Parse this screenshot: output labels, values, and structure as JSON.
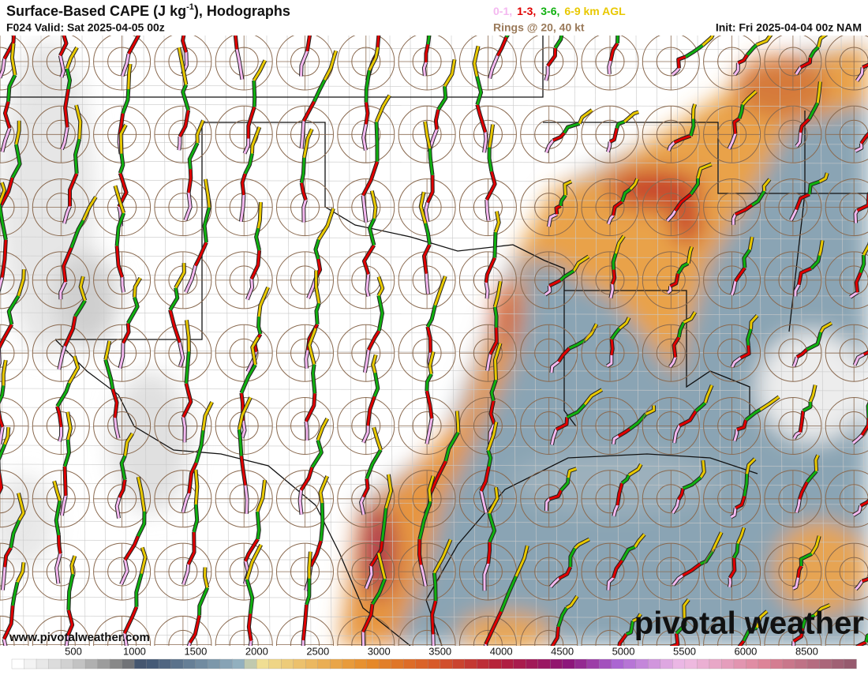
{
  "header": {
    "title": "Surface-Based CAPE (J kg",
    "title_sup": "-1",
    "title_end": "), Hodographs",
    "valid": "F024 Valid: Sat 2025-04-05 00z",
    "layers": [
      {
        "label": "0-1,",
        "color": "#f4b8f0"
      },
      {
        "label": "1-3,",
        "color": "#e00000"
      },
      {
        "label": "3-6,",
        "color": "#10b010"
      },
      {
        "label": "6-9 km AGL",
        "color": "#e8c800"
      }
    ],
    "rings": "Rings @ 20, 40 kt",
    "init": "Init: Fri 2025-04-04 00z NAM"
  },
  "colorbar": {
    "labels": [
      "500",
      "1000",
      "1500",
      "2000",
      "2500",
      "3000",
      "3500",
      "4000",
      "4500",
      "5000",
      "5500",
      "6000",
      "8500"
    ]
  },
  "footer": {
    "url": "www.pivotalweather.com",
    "logo": "pivotal weather"
  }
}
